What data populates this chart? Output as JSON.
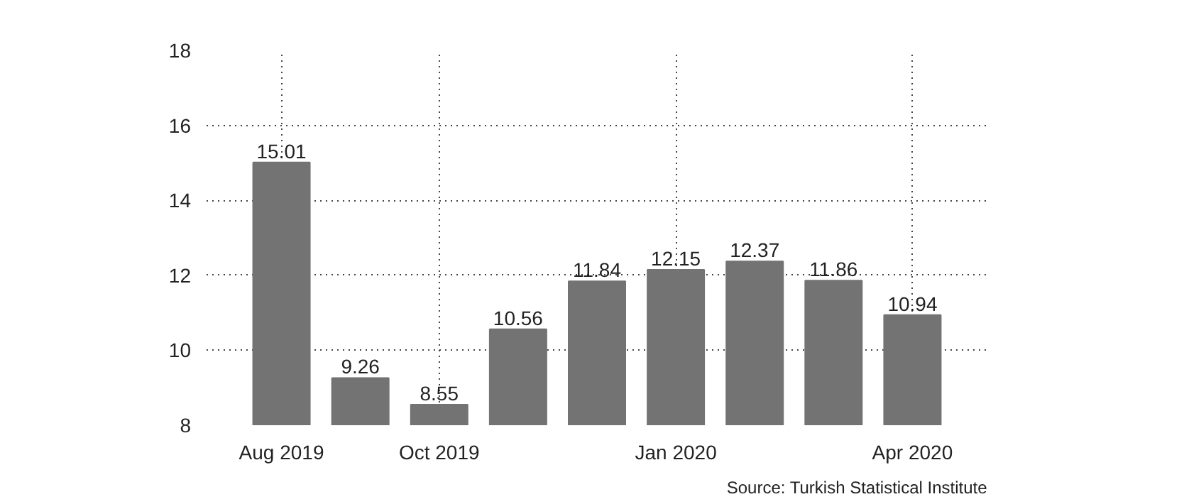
{
  "chart_data": {
    "type": "bar",
    "categories": [
      "Aug 2019",
      null,
      "Oct 2019",
      null,
      null,
      "Jan 2020",
      null,
      null,
      "Apr 2020"
    ],
    "values": [
      15.01,
      9.26,
      8.55,
      10.56,
      11.84,
      12.15,
      12.37,
      11.86,
      10.94
    ],
    "color": "#737373",
    "ylim": [
      8,
      18
    ],
    "yticks": [
      8,
      10,
      12,
      14,
      16,
      18
    ],
    "grid": true,
    "data_labels": true,
    "annotations": [
      "Source: Turkish Statistical Institute"
    ]
  }
}
